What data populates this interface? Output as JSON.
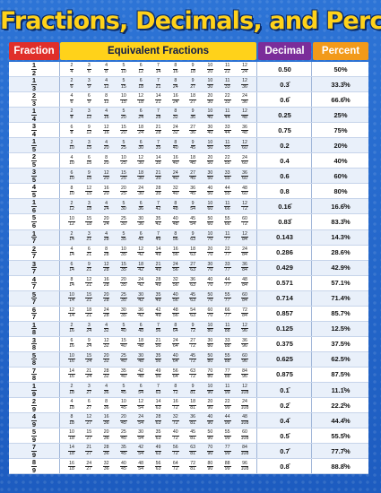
{
  "title": "Fractions, Decimals, and Percents",
  "headers": {
    "fraction": "Fraction",
    "equivalent": "Equivalent Fractions",
    "decimal": "Decimal",
    "percent": "Percent"
  },
  "rows": [
    {
      "fraction": [
        "1",
        "2"
      ],
      "multipliers": [
        2,
        3,
        4,
        5,
        6,
        7,
        8,
        9,
        10,
        11,
        12
      ],
      "decimal": "0.50",
      "percent": "50%"
    },
    {
      "fraction": [
        "1",
        "3"
      ],
      "multipliers": [
        2,
        3,
        4,
        5,
        6,
        7,
        8,
        9,
        10,
        11,
        12
      ],
      "decimal": "0.3̄",
      "percent": "33.3̄%"
    },
    {
      "fraction": [
        "2",
        "3"
      ],
      "multipliers": [
        2,
        3,
        4,
        5,
        6,
        7,
        8,
        9,
        10,
        11,
        12
      ],
      "decimal": "0.6̄",
      "percent": "66.6̄%"
    },
    {
      "fraction": [
        "1",
        "4"
      ],
      "multipliers": [
        2,
        3,
        4,
        5,
        6,
        7,
        8,
        9,
        10,
        11,
        12
      ],
      "decimal": "0.25",
      "percent": "25%"
    },
    {
      "fraction": [
        "3",
        "4"
      ],
      "multipliers": [
        2,
        3,
        4,
        5,
        6,
        7,
        8,
        9,
        10,
        11,
        12
      ],
      "decimal": "0.75",
      "percent": "75%"
    },
    {
      "fraction": [
        "1",
        "5"
      ],
      "multipliers": [
        2,
        3,
        4,
        5,
        6,
        7,
        8,
        9,
        10,
        11,
        12
      ],
      "decimal": "0.2",
      "percent": "20%"
    },
    {
      "fraction": [
        "2",
        "5"
      ],
      "multipliers": [
        2,
        3,
        4,
        5,
        6,
        7,
        8,
        9,
        10,
        11,
        12
      ],
      "decimal": "0.4",
      "percent": "40%"
    },
    {
      "fraction": [
        "3",
        "5"
      ],
      "multipliers": [
        2,
        3,
        4,
        5,
        6,
        7,
        8,
        9,
        10,
        11,
        12
      ],
      "decimal": "0.6",
      "percent": "60%"
    },
    {
      "fraction": [
        "4",
        "5"
      ],
      "multipliers": [
        2,
        3,
        4,
        5,
        6,
        7,
        8,
        9,
        10,
        11,
        12
      ],
      "decimal": "0.8",
      "percent": "80%"
    },
    {
      "fraction": [
        "1",
        "6"
      ],
      "multipliers": [
        2,
        3,
        4,
        5,
        6,
        7,
        8,
        9,
        10,
        11,
        12
      ],
      "decimal": "0.16̄",
      "percent": "16.6̄%"
    },
    {
      "fraction": [
        "5",
        "6"
      ],
      "multipliers": [
        2,
        3,
        4,
        5,
        6,
        7,
        8,
        9,
        10,
        11,
        12
      ],
      "decimal": "0.83̄",
      "percent": "83.3̄%"
    },
    {
      "fraction": [
        "1",
        "7"
      ],
      "multipliers": [
        2,
        3,
        4,
        5,
        6,
        7,
        8,
        9,
        10,
        11,
        12
      ],
      "decimal": "0.143",
      "percent": "14.3%"
    },
    {
      "fraction": [
        "2",
        "7"
      ],
      "multipliers": [
        2,
        3,
        4,
        5,
        6,
        7,
        8,
        9,
        10,
        11,
        12
      ],
      "decimal": "0.286",
      "percent": "28.6%"
    },
    {
      "fraction": [
        "3",
        "7"
      ],
      "multipliers": [
        2,
        3,
        4,
        5,
        6,
        7,
        8,
        9,
        10,
        11,
        12
      ],
      "decimal": "0.429",
      "percent": "42.9%"
    },
    {
      "fraction": [
        "4",
        "7"
      ],
      "multipliers": [
        2,
        3,
        4,
        5,
        6,
        7,
        8,
        9,
        10,
        11,
        12
      ],
      "decimal": "0.571",
      "percent": "57.1%"
    },
    {
      "fraction": [
        "5",
        "7"
      ],
      "multipliers": [
        2,
        3,
        4,
        5,
        6,
        7,
        8,
        9,
        10,
        11,
        12
      ],
      "decimal": "0.714",
      "percent": "71.4%"
    },
    {
      "fraction": [
        "6",
        "7"
      ],
      "multipliers": [
        2,
        3,
        4,
        5,
        6,
        7,
        8,
        9,
        10,
        11,
        12
      ],
      "decimal": "0.857",
      "percent": "85.7%"
    },
    {
      "fraction": [
        "1",
        "8"
      ],
      "multipliers": [
        2,
        3,
        4,
        5,
        6,
        7,
        8,
        9,
        10,
        11,
        12
      ],
      "decimal": "0.125",
      "percent": "12.5%"
    },
    {
      "fraction": [
        "3",
        "8"
      ],
      "multipliers": [
        2,
        3,
        4,
        5,
        6,
        7,
        8,
        9,
        10,
        11,
        12
      ],
      "decimal": "0.375",
      "percent": "37.5%"
    },
    {
      "fraction": [
        "5",
        "8"
      ],
      "multipliers": [
        2,
        3,
        4,
        5,
        6,
        7,
        8,
        9,
        10,
        11,
        12
      ],
      "decimal": "0.625",
      "percent": "62.5%"
    },
    {
      "fraction": [
        "7",
        "8"
      ],
      "multipliers": [
        2,
        3,
        4,
        5,
        6,
        7,
        8,
        9,
        10,
        11,
        12
      ],
      "decimal": "0.875",
      "percent": "87.5%"
    },
    {
      "fraction": [
        "1",
        "9"
      ],
      "multipliers": [
        2,
        3,
        4,
        5,
        6,
        7,
        8,
        9,
        10,
        11,
        12
      ],
      "decimal": "0.1̄",
      "percent": "11.1̄%"
    },
    {
      "fraction": [
        "2",
        "9"
      ],
      "multipliers": [
        2,
        3,
        4,
        5,
        6,
        7,
        8,
        9,
        10,
        11,
        12
      ],
      "decimal": "0.2̄",
      "percent": "22.2̄%"
    },
    {
      "fraction": [
        "4",
        "9"
      ],
      "multipliers": [
        2,
        3,
        4,
        5,
        6,
        7,
        8,
        9,
        10,
        11,
        12
      ],
      "decimal": "0.4̄",
      "percent": "44.4̄%"
    },
    {
      "fraction": [
        "5",
        "9"
      ],
      "multipliers": [
        2,
        3,
        4,
        5,
        6,
        7,
        8,
        9,
        10,
        11,
        12
      ],
      "decimal": "0.5̄",
      "percent": "55.5̄%"
    },
    {
      "fraction": [
        "7",
        "9"
      ],
      "multipliers": [
        2,
        3,
        4,
        5,
        6,
        7,
        8,
        9,
        10,
        11,
        12
      ],
      "decimal": "0.7̄",
      "percent": "77.7̄%"
    },
    {
      "fraction": [
        "8",
        "9"
      ],
      "multipliers": [
        2,
        3,
        4,
        5,
        6,
        7,
        8,
        9,
        10,
        11,
        12
      ],
      "decimal": "0.8̄",
      "percent": "88.8̄%"
    }
  ],
  "colors": {
    "background": "#1f5fc0",
    "title": "#ffd21a",
    "fraction_header": "#e02f2a",
    "equivalent_header": "#ffd21a",
    "decimal_header": "#7b2d9a",
    "percent_header": "#f29a1a"
  }
}
